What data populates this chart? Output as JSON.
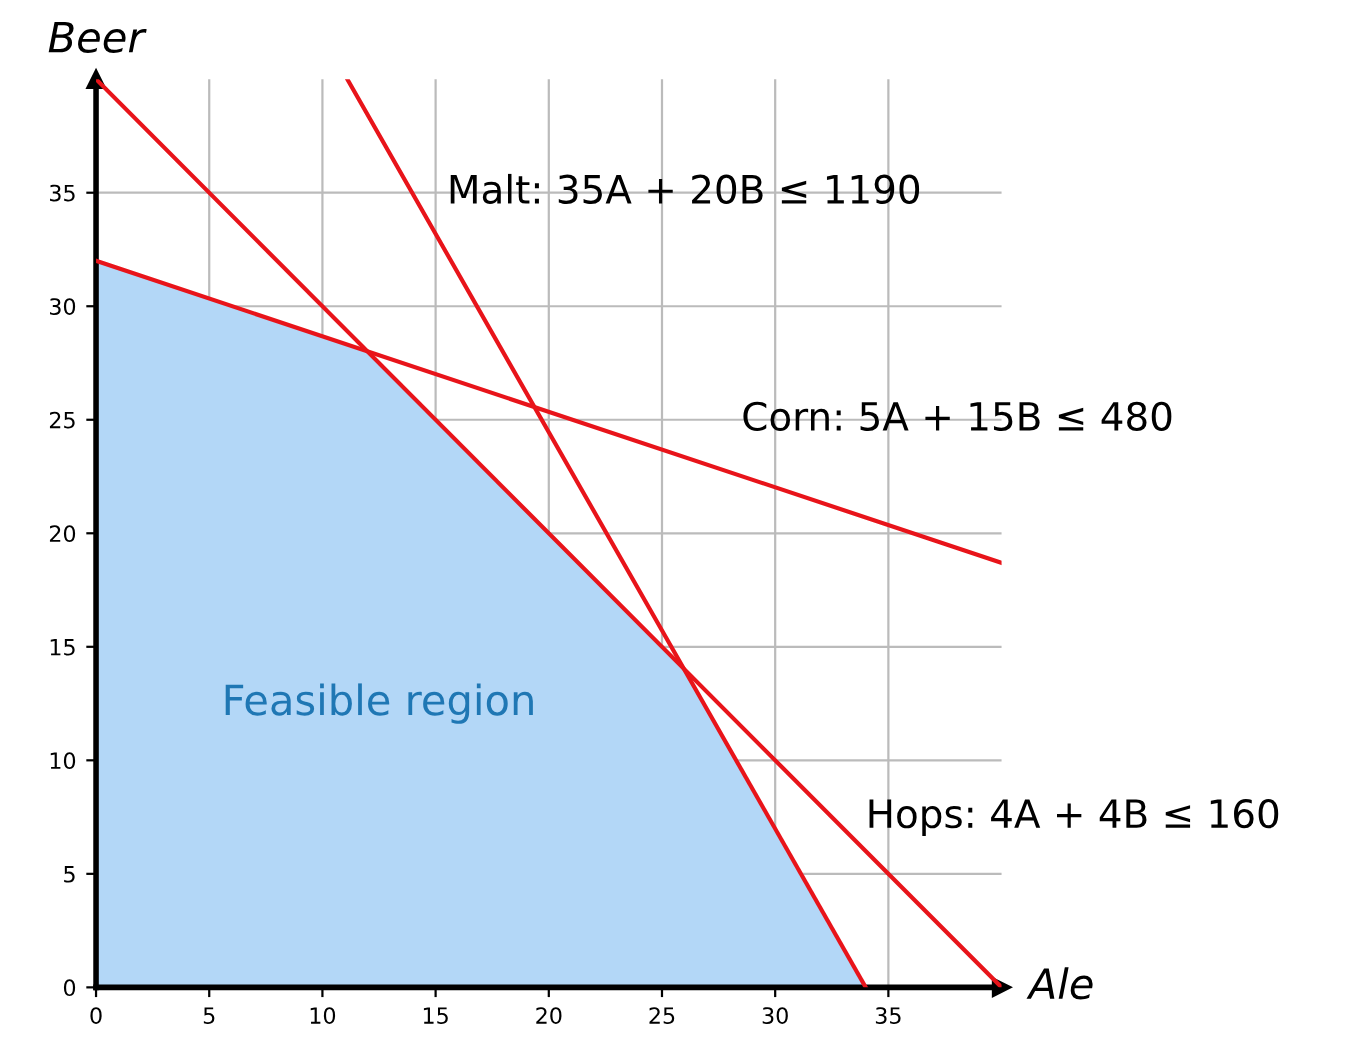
{
  "chart_data": {
    "type": "line",
    "xlabel": "Ale",
    "ylabel": "Beer",
    "xlim": [
      0,
      40
    ],
    "ylim": [
      0,
      40
    ],
    "xticks": [
      0,
      5,
      10,
      15,
      20,
      25,
      30,
      35
    ],
    "yticks": [
      0,
      5,
      10,
      15,
      20,
      25,
      30,
      35
    ],
    "grid": true,
    "marker": "none",
    "line_style": "solid",
    "series": [
      {
        "type": "area",
        "name": "Feasible region",
        "color": "#b3d7f7",
        "x": [
          0,
          12,
          26,
          34
        ],
        "values": [
          32,
          28,
          14,
          0
        ]
      },
      {
        "name": "Malt: 35A + 20B ≤ 1190",
        "color": "#e8141a",
        "x": [
          11.1,
          34
        ],
        "values": [
          40,
          0
        ]
      },
      {
        "name": "Corn: 5A + 15B ≤ 480",
        "color": "#e8141a",
        "x": [
          0,
          40
        ],
        "values": [
          32,
          18.7
        ]
      },
      {
        "name": "Hops: 4A + 4B ≤ 160",
        "color": "#e8141a",
        "x": [
          0,
          40
        ],
        "values": [
          40,
          0
        ]
      }
    ]
  }
}
